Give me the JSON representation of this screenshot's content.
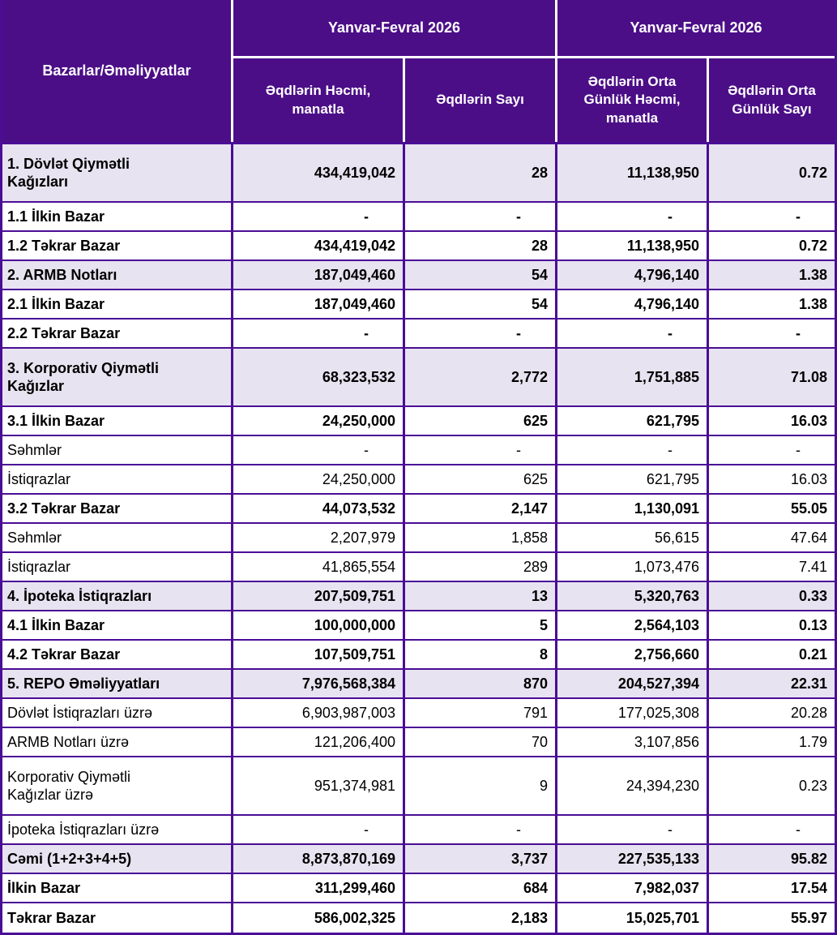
{
  "colors": {
    "header_bg": "#4B0E87",
    "header_text": "#FFFFFF",
    "grid_border": "#4A0D96",
    "section_row_bg": "#E7E3F0",
    "body_text": "#000000"
  },
  "table": {
    "corner_header": "Bazarlar/Əməliyyatlar",
    "group_headers": [
      "Yanvar-Fevral 2026",
      "Yanvar-Fevral  2026"
    ],
    "sub_headers": [
      "Əqdlərin Həcmi,\nmanatla",
      "Əqdlərin Sayı",
      "Əqdlərin Orta\nGünlük Həcmi,\nmanatla",
      "Əqdlərin Orta\nGünlük Sayı"
    ],
    "rows": [
      {
        "label": "1. Dövlət Qiymətli\nKağızları",
        "style": "section",
        "tall": true,
        "values": [
          "434,419,042",
          "28",
          "11,138,950",
          "0.72"
        ]
      },
      {
        "label": "1.1 İlkin Bazar",
        "style": "sub",
        "tall": false,
        "values": [
          "-",
          "-",
          "-",
          "-"
        ]
      },
      {
        "label": "1.2 Təkrar Bazar",
        "style": "sub",
        "tall": false,
        "values": [
          "434,419,042",
          "28",
          "11,138,950",
          "0.72"
        ]
      },
      {
        "label": "2. ARMB Notları",
        "style": "section",
        "tall": false,
        "values": [
          "187,049,460",
          "54",
          "4,796,140",
          "1.38"
        ]
      },
      {
        "label": "2.1 İlkin Bazar",
        "style": "sub",
        "tall": false,
        "values": [
          "187,049,460",
          "54",
          "4,796,140",
          "1.38"
        ]
      },
      {
        "label": "2.2 Təkrar Bazar",
        "style": "sub",
        "tall": false,
        "values": [
          "-",
          "-",
          "-",
          "-"
        ]
      },
      {
        "label": "3. Korporativ Qiymətli\nKağızlar",
        "style": "section",
        "tall": true,
        "values": [
          "68,323,532",
          "2,772",
          "1,751,885",
          "71.08"
        ]
      },
      {
        "label": "3.1 İlkin Bazar",
        "style": "sub",
        "tall": false,
        "values": [
          "24,250,000",
          "625",
          "621,795",
          "16.03"
        ]
      },
      {
        "label": "Səhmlər",
        "style": "detail",
        "tall": false,
        "values": [
          "-",
          "-",
          "-",
          "-"
        ]
      },
      {
        "label": "İstiqrazlar",
        "style": "detail",
        "tall": false,
        "values": [
          "24,250,000",
          "625",
          "621,795",
          "16.03"
        ]
      },
      {
        "label": "3.2 Təkrar Bazar",
        "style": "sub",
        "tall": false,
        "values": [
          "44,073,532",
          "2,147",
          "1,130,091",
          "55.05"
        ]
      },
      {
        "label": "Səhmlər",
        "style": "detail",
        "tall": false,
        "values": [
          "2,207,979",
          "1,858",
          "56,615",
          "47.64"
        ]
      },
      {
        "label": "İstiqrazlar",
        "style": "detail",
        "tall": false,
        "values": [
          "41,865,554",
          "289",
          "1,073,476",
          "7.41"
        ]
      },
      {
        "label": "4. İpoteka İstiqrazları",
        "style": "section",
        "tall": false,
        "values": [
          "207,509,751",
          "13",
          "5,320,763",
          "0.33"
        ]
      },
      {
        "label": "4.1 İlkin Bazar",
        "style": "sub",
        "tall": false,
        "values": [
          "100,000,000",
          "5",
          "2,564,103",
          "0.13"
        ]
      },
      {
        "label": "4.2 Təkrar Bazar",
        "style": "sub",
        "tall": false,
        "values": [
          "107,509,751",
          "8",
          "2,756,660",
          "0.21"
        ]
      },
      {
        "label": "5. REPO Əməliyyatları",
        "style": "section",
        "tall": false,
        "values": [
          "7,976,568,384",
          "870",
          "204,527,394",
          "22.31"
        ]
      },
      {
        "label": "Dövlət İstiqrazları üzrə",
        "style": "detail",
        "tall": false,
        "values": [
          "6,903,987,003",
          "791",
          "177,025,308",
          "20.28"
        ]
      },
      {
        "label": "ARMB Notları üzrə",
        "style": "detail",
        "tall": false,
        "values": [
          "121,206,400",
          "70",
          "3,107,856",
          "1.79"
        ]
      },
      {
        "label": "Korporativ Qiymətli\nKağızlar üzrə",
        "style": "detail",
        "tall": true,
        "values": [
          "951,374,981",
          "9",
          "24,394,230",
          "0.23"
        ]
      },
      {
        "label": "İpoteka İstiqrazları üzrə",
        "style": "detail",
        "tall": false,
        "values": [
          "-",
          "-",
          "-",
          "-"
        ]
      },
      {
        "label": "Cəmi (1+2+3+4+5)",
        "style": "section",
        "tall": false,
        "values": [
          "8,873,870,169",
          "3,737",
          "227,535,133",
          "95.82"
        ]
      },
      {
        "label": "İlkin Bazar",
        "style": "sub",
        "tall": false,
        "values": [
          "311,299,460",
          "684",
          "7,982,037",
          "17.54"
        ]
      },
      {
        "label": "Təkrar Bazar",
        "style": "sub",
        "tall": false,
        "values": [
          "586,002,325",
          "2,183",
          "15,025,701",
          "55.97"
        ]
      }
    ]
  }
}
